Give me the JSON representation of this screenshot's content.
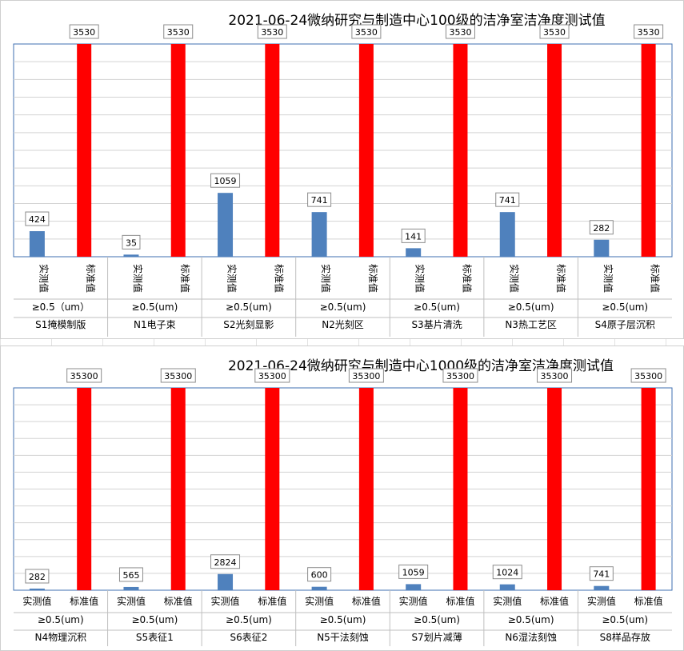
{
  "chart_data": [
    {
      "type": "bar",
      "title": "2021-06-24微纳研究与制造中心100级的洁净室洁净度测试值",
      "series_labels": [
        "实测值",
        "标准值"
      ],
      "particle_labels": [
        "≥0.5（um）",
        "≥0.5(um)",
        "≥0.5(um)",
        "≥0.5(um)",
        "≥0.5(um)",
        "≥0.5(um)",
        "≥0.5(um)"
      ],
      "categories": [
        "S1掩模制版",
        "N1电子束",
        "S2光刻显影",
        "N2光刻区",
        "S3基片清洗",
        "N3热工艺区",
        "S4原子层沉积"
      ],
      "series": [
        {
          "values": [
            424,
            35,
            1059,
            741,
            141,
            741,
            282
          ],
          "color": "#4f81bd"
        },
        {
          "values": [
            3530,
            3530,
            3530,
            3530,
            3530,
            3530,
            3530
          ],
          "color": "#ff0000"
        }
      ],
      "ylim": [
        0,
        3530
      ],
      "grid": true,
      "vertical_series_labels": true
    },
    {
      "type": "bar",
      "title": "2021-06-24微纳研究与制造中心1000级的洁净室洁净度测试值",
      "series_labels": [
        "实测值",
        "标准值"
      ],
      "particle_labels": [
        "≥0.5(um)",
        "≥0.5(um)",
        "≥0.5(um)",
        "≥0.5(um)",
        "≥0.5(um)",
        "≥0.5(um)",
        "≥0.5(um)"
      ],
      "categories": [
        "N4物理沉积",
        "S5表征1",
        "S6表征2",
        "N5干法刻蚀",
        "S7划片减薄",
        "N6湿法刻蚀",
        "S8样品存放"
      ],
      "series": [
        {
          "values": [
            282,
            565,
            2824,
            600,
            1059,
            1024,
            741
          ],
          "color": "#4f81bd"
        },
        {
          "values": [
            35300,
            35300,
            35300,
            35300,
            35300,
            35300,
            35300
          ],
          "color": "#ff0000"
        }
      ],
      "ylim": [
        0,
        35300
      ],
      "grid": true,
      "vertical_series_labels": false
    }
  ]
}
